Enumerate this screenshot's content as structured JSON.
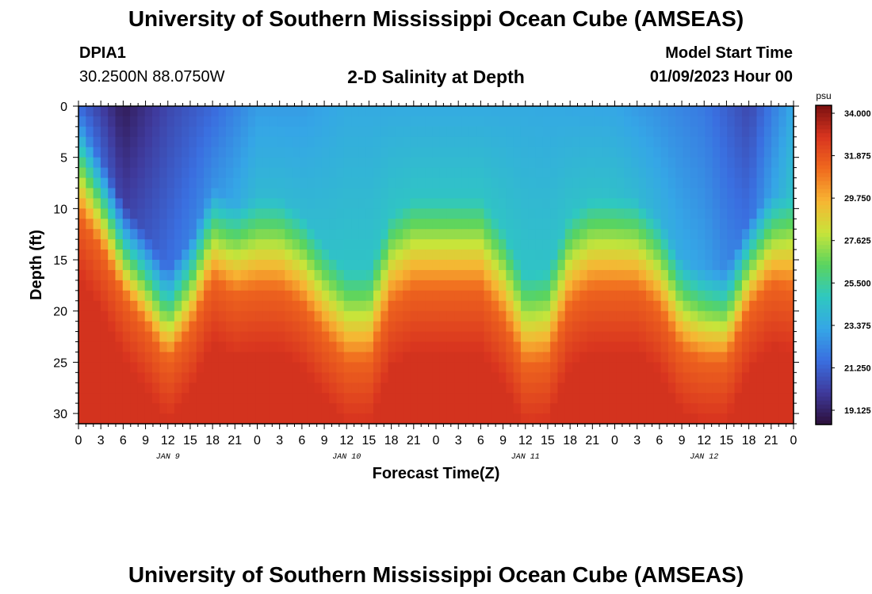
{
  "header": {
    "title": "University of Southern Mississippi Ocean Cube (AMSEAS)",
    "station_id": "DPIA1",
    "station_coords": "30.2500N  88.0750W",
    "plot_title": "2-D Salinity at Depth",
    "model_start_label": "Model Start Time",
    "model_start_value": "01/09/2023 Hour 00"
  },
  "footer": {
    "title": "University of Southern Mississippi Ocean Cube (AMSEAS)"
  },
  "colors": {
    "palette": [
      "#2c0f3a",
      "#3f3a9c",
      "#3a6fe0",
      "#35a6e6",
      "#2fc8c0",
      "#5ad45f",
      "#c8e43a",
      "#f7b533",
      "#f06a1e",
      "#d9351f",
      "#7a1010"
    ]
  },
  "chart_data": {
    "type": "heatmap",
    "title": "2-D Salinity at Depth",
    "xlabel": "Forecast Time(Z)",
    "ylabel": "Depth (ft)",
    "x_range_hours": [
      0,
      96
    ],
    "y_range_ft": [
      0,
      31
    ],
    "x_tick_hours": [
      0,
      3,
      6,
      9,
      12,
      15,
      18,
      21,
      24,
      27,
      30,
      33,
      36,
      39,
      42,
      45,
      48,
      51,
      54,
      57,
      60,
      63,
      66,
      69,
      72,
      75,
      78,
      81,
      84,
      87,
      90,
      93,
      96
    ],
    "x_tick_labels": [
      "0",
      "3",
      "6",
      "9",
      "12",
      "15",
      "18",
      "21",
      "0",
      "3",
      "6",
      "9",
      "12",
      "15",
      "18",
      "21",
      "0",
      "3",
      "6",
      "9",
      "12",
      "15",
      "18",
      "21",
      "0",
      "3",
      "6",
      "9",
      "12",
      "15",
      "18",
      "21",
      "0"
    ],
    "day_labels": [
      {
        "label": "JAN 9",
        "hour": 12
      },
      {
        "label": "JAN 10",
        "hour": 36
      },
      {
        "label": "JAN 11",
        "hour": 60
      },
      {
        "label": "JAN 12",
        "hour": 84
      }
    ],
    "y_ticks": [
      0,
      5,
      10,
      15,
      20,
      25,
      30
    ],
    "y_tick_labels": [
      "0",
      "5",
      "10",
      "15",
      "20",
      "25",
      "30"
    ],
    "colorbar": {
      "unit": "psu",
      "min": 18.0,
      "max": 34.0,
      "labels": [
        "34.000",
        "31.875",
        "29.750",
        "27.625",
        "25.500",
        "23.375",
        "21.250",
        "19.125"
      ]
    },
    "halocline_depth_ft": [
      {
        "hour": 0,
        "depth": 8.5
      },
      {
        "hour": 3,
        "depth": 12
      },
      {
        "hour": 6,
        "depth": 16.5
      },
      {
        "hour": 9,
        "depth": 19.5
      },
      {
        "hour": 12,
        "depth": 23
      },
      {
        "hour": 15,
        "depth": 20
      },
      {
        "hour": 18,
        "depth": 15
      },
      {
        "hour": 21,
        "depth": 16.5
      },
      {
        "hour": 24,
        "depth": 16
      },
      {
        "hour": 27,
        "depth": 16
      },
      {
        "hour": 30,
        "depth": 17.5
      },
      {
        "hour": 33,
        "depth": 20.5
      },
      {
        "hour": 36,
        "depth": 23
      },
      {
        "hour": 39,
        "depth": 23
      },
      {
        "hour": 42,
        "depth": 17.5
      },
      {
        "hour": 45,
        "depth": 16
      },
      {
        "hour": 48,
        "depth": 16
      },
      {
        "hour": 51,
        "depth": 16
      },
      {
        "hour": 54,
        "depth": 16
      },
      {
        "hour": 57,
        "depth": 19
      },
      {
        "hour": 60,
        "depth": 23.5
      },
      {
        "hour": 63,
        "depth": 23
      },
      {
        "hour": 66,
        "depth": 17.5
      },
      {
        "hour": 69,
        "depth": 16
      },
      {
        "hour": 72,
        "depth": 16
      },
      {
        "hour": 75,
        "depth": 16
      },
      {
        "hour": 78,
        "depth": 18
      },
      {
        "hour": 81,
        "depth": 22
      },
      {
        "hour": 84,
        "depth": 23
      },
      {
        "hour": 87,
        "depth": 23
      },
      {
        "hour": 90,
        "depth": 18
      },
      {
        "hour": 93,
        "depth": 15.5
      },
      {
        "hour": 96,
        "depth": 16
      }
    ],
    "surface_salinity_psu": [
      {
        "hour": 0,
        "value": 21
      },
      {
        "hour": 6,
        "value": 18.5
      },
      {
        "hour": 12,
        "value": 20
      },
      {
        "hour": 18,
        "value": 21
      },
      {
        "hour": 24,
        "value": 22.5
      },
      {
        "hour": 30,
        "value": 22.5
      },
      {
        "hour": 36,
        "value": 23
      },
      {
        "hour": 48,
        "value": 23
      },
      {
        "hour": 60,
        "value": 23
      },
      {
        "hour": 72,
        "value": 22.8
      },
      {
        "hour": 84,
        "value": 21.5
      },
      {
        "hour": 90,
        "value": 20
      },
      {
        "hour": 96,
        "value": 23
      }
    ],
    "bottom_salinity_psu": 32.5
  }
}
